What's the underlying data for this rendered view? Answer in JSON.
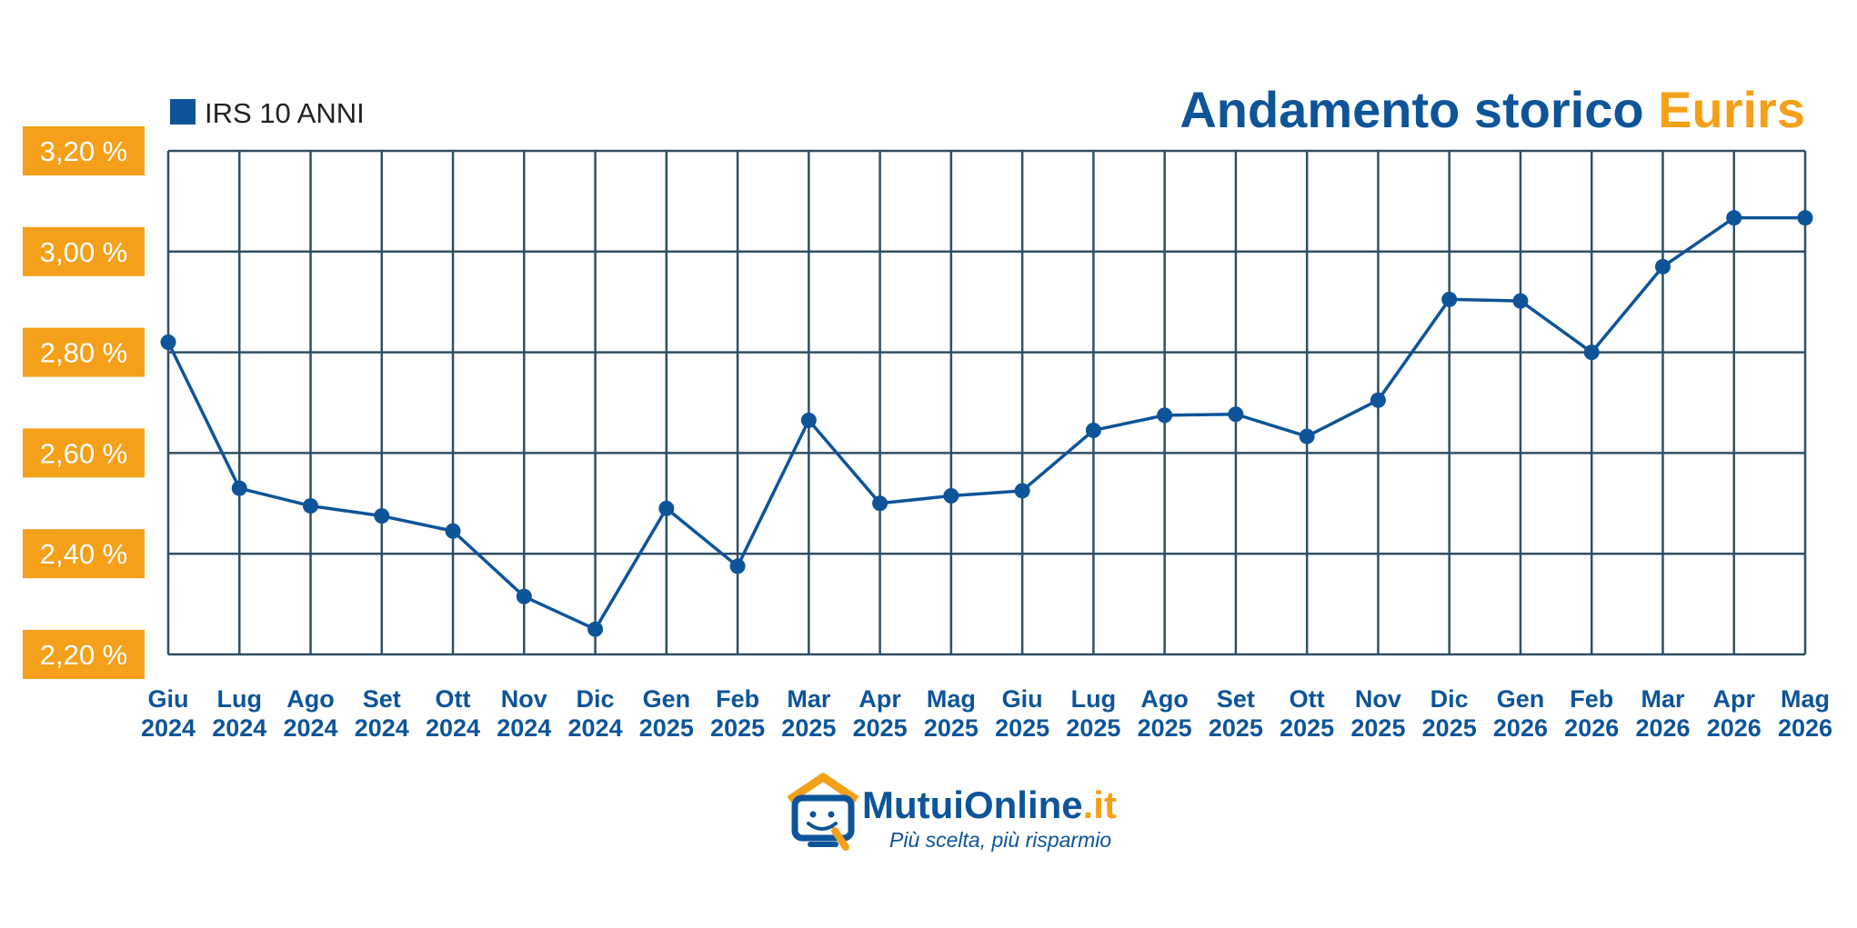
{
  "colors": {
    "primary": "#0d5499",
    "accent": "#f5a01a",
    "grid": "#2f4f63",
    "background": "#ffffff"
  },
  "chart_data": {
    "type": "line",
    "title_part1": "Andamento storico",
    "title_part2": "Eurirs",
    "legend": {
      "label": "IRS 10 ANNI",
      "position": "top-left"
    },
    "grid": true,
    "ylim": [
      2.2,
      3.2
    ],
    "yticks": [
      {
        "value": 3.2,
        "label": "3,20 %"
      },
      {
        "value": 3.0,
        "label": "3,00 %"
      },
      {
        "value": 2.8,
        "label": "2,80 %"
      },
      {
        "value": 2.6,
        "label": "2,60 %"
      },
      {
        "value": 2.4,
        "label": "2,40 %"
      },
      {
        "value": 2.2,
        "label": "2,20 %"
      }
    ],
    "categories": [
      {
        "month": "Giu",
        "year": "2024"
      },
      {
        "month": "Lug",
        "year": "2024"
      },
      {
        "month": "Ago",
        "year": "2024"
      },
      {
        "month": "Set",
        "year": "2024"
      },
      {
        "month": "Ott",
        "year": "2024"
      },
      {
        "month": "Nov",
        "year": "2024"
      },
      {
        "month": "Dic",
        "year": "2024"
      },
      {
        "month": "Gen",
        "year": "2025"
      },
      {
        "month": "Feb",
        "year": "2025"
      },
      {
        "month": "Mar",
        "year": "2025"
      },
      {
        "month": "Apr",
        "year": "2025"
      },
      {
        "month": "Mag",
        "year": "2025"
      },
      {
        "month": "Giu",
        "year": "2025"
      },
      {
        "month": "Lug",
        "year": "2025"
      },
      {
        "month": "Ago",
        "year": "2025"
      },
      {
        "month": "Set",
        "year": "2025"
      },
      {
        "month": "Ott",
        "year": "2025"
      },
      {
        "month": "Nov",
        "year": "2025"
      },
      {
        "month": "Dic",
        "year": "2025"
      },
      {
        "month": "Gen",
        "year": "2026"
      },
      {
        "month": "Feb",
        "year": "2026"
      },
      {
        "month": "Mar",
        "year": "2026"
      },
      {
        "month": "Apr",
        "year": "2026"
      },
      {
        "month": "Mag",
        "year": "2026"
      }
    ],
    "series": [
      {
        "name": "IRS 10 ANNI",
        "values": [
          2.82,
          2.53,
          2.495,
          2.475,
          2.445,
          2.315,
          2.25,
          2.49,
          2.375,
          2.665,
          2.5,
          2.515,
          2.525,
          2.645,
          2.675,
          2.677,
          2.633,
          2.705,
          2.905,
          2.902,
          2.8,
          2.97,
          3.067,
          3.067
        ]
      }
    ]
  },
  "logo": {
    "name_part1": "MutuiOnline",
    "name_part2": ".it",
    "tagline": "Più scelta, più risparmio"
  }
}
